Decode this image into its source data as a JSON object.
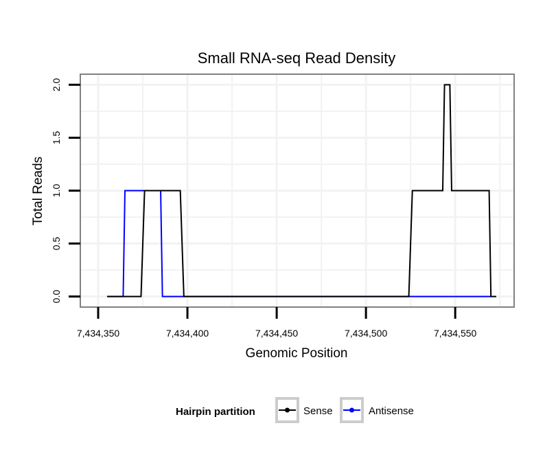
{
  "chart_data": {
    "type": "line",
    "title": "Small RNA-seq Read Density",
    "xlabel": "Genomic Position",
    "ylabel": "Total Reads",
    "xlim": [
      7434340,
      7434583
    ],
    "ylim": [
      -0.1,
      2.1
    ],
    "x_ticks": [
      7434350,
      7434400,
      7434450,
      7434500,
      7434550
    ],
    "x_tick_labels": [
      "7,434,350",
      "7,434,400",
      "7,434,450",
      "7,434,500",
      "7,434,550"
    ],
    "y_ticks": [
      0,
      0.5,
      1,
      1.5,
      2
    ],
    "y_tick_labels": [
      "0.0",
      "0.5",
      "1.0",
      "1.5",
      "2.0"
    ],
    "grid": true,
    "legend": {
      "title": "Hairpin partition",
      "position": "bottom",
      "entries": [
        "Sense",
        "Antisense"
      ]
    },
    "series": [
      {
        "name": "Sense",
        "color": "#000000",
        "x": [
          7434355,
          7434374,
          7434376,
          7434396,
          7434398,
          7434524,
          7434526,
          7434543,
          7434544,
          7434547,
          7434548,
          7434569,
          7434570,
          7434573
        ],
        "y": [
          0,
          0,
          1,
          1,
          0,
          0,
          1,
          1,
          2,
          2,
          1,
          1,
          0,
          0
        ]
      },
      {
        "name": "Antisense",
        "color": "#0000ff",
        "x": [
          7434355,
          7434364,
          7434365,
          7434385,
          7434386,
          7434570
        ],
        "y": [
          0,
          0,
          1,
          1,
          0,
          0
        ]
      }
    ]
  }
}
